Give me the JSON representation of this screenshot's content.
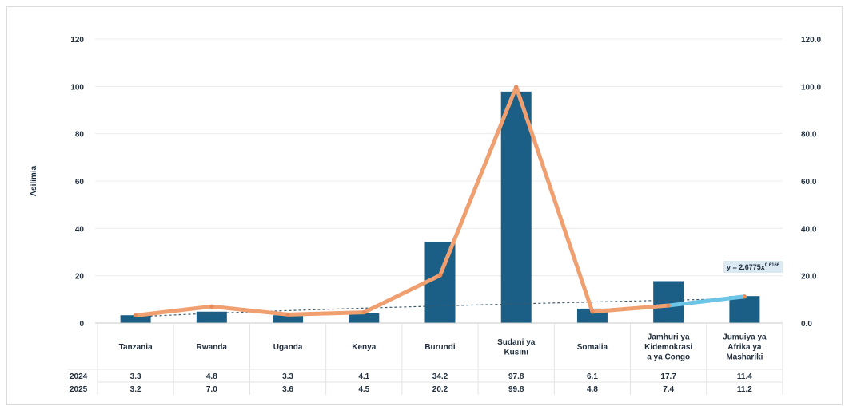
{
  "chart_data": {
    "type": "bar",
    "ylabel": "Asilimia",
    "ylim": [
      0,
      120
    ],
    "yticks_left": [
      "0",
      "20",
      "40",
      "60",
      "80",
      "100",
      "120"
    ],
    "yticks_right": [
      "0.0",
      "20.0",
      "40.0",
      "60.0",
      "80.0",
      "100.0",
      "120.0"
    ],
    "categories": [
      "Tanzania",
      "Rwanda",
      "Uganda",
      "Kenya",
      "Burundi",
      "Sudani ya Kusini",
      "Somalia",
      "Jamhuri ya Kidemokrasi a ya Congo",
      "Jumuiya ya Afrika ya Mashariki"
    ],
    "category_lines": [
      [
        "Tanzania"
      ],
      [
        "Rwanda"
      ],
      [
        "Uganda"
      ],
      [
        "Kenya"
      ],
      [
        "Burundi"
      ],
      [
        "Sudani ya",
        "Kusini"
      ],
      [
        "Somalia"
      ],
      [
        "Jamhuri ya",
        "Kidemokrasi",
        "a ya Congo"
      ],
      [
        "Jumuiya ya",
        "Afrika ya",
        "Mashariki"
      ]
    ],
    "series": [
      {
        "name": "2024",
        "type": "bar",
        "color": "#1c5f86",
        "values": [
          3.3,
          4.8,
          3.3,
          4.1,
          34.2,
          97.8,
          6.1,
          17.7,
          11.4
        ]
      },
      {
        "name": "2025",
        "type": "line",
        "color": "#f0a070",
        "values": [
          3.2,
          7.0,
          3.6,
          4.5,
          20.2,
          99.8,
          4.8,
          7.4,
          11.2
        ]
      }
    ],
    "value_labels": {
      "2024": [
        "3.3",
        "4.8",
        "3.3",
        "4.1",
        "34.2",
        "97.8",
        "6.1",
        "17.7",
        "11.4"
      ],
      "2025": [
        "3.2",
        "7.0",
        "3.6",
        "4.5",
        "20.2",
        "99.8",
        "4.8",
        "7.4",
        "11.2"
      ]
    },
    "highlight_segment_color": "#6cc4e6",
    "trendline": {
      "type": "power",
      "label": "y = 2.6775x",
      "exponent_label": "0.6166"
    },
    "grid": true
  }
}
